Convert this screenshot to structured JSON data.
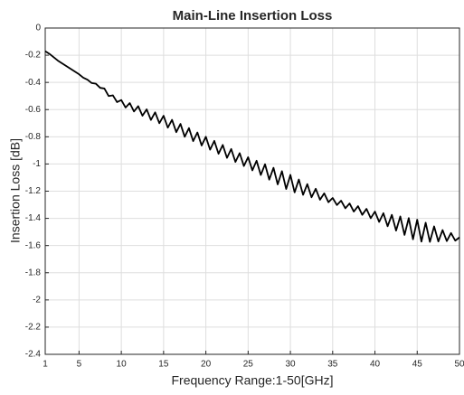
{
  "chart_data": {
    "type": "line",
    "title": "Main-Line Insertion Loss",
    "xlabel": "Frequency Range:1-50[GHz]",
    "ylabel": "Insertion Loss [dB]",
    "xlim": [
      1,
      50
    ],
    "ylim": [
      -2.4,
      0
    ],
    "xticks": [
      1,
      5,
      10,
      15,
      20,
      25,
      30,
      35,
      40,
      45,
      50
    ],
    "yticks": [
      -2.4,
      -2.2,
      -2,
      -1.8,
      -1.6,
      -1.4,
      -1.2,
      -1,
      -0.8,
      -0.6,
      -0.4,
      -0.2,
      0
    ],
    "grid": true,
    "x": [
      1,
      1.5,
      2,
      2.5,
      3,
      3.5,
      4,
      4.5,
      5,
      5.5,
      6,
      6.5,
      7,
      7.5,
      8,
      8.5,
      9,
      9.5,
      10,
      10.5,
      11,
      11.5,
      12,
      12.5,
      13,
      13.5,
      14,
      14.5,
      15,
      15.5,
      16,
      16.5,
      17,
      17.5,
      18,
      18.5,
      19,
      19.5,
      20,
      20.5,
      21,
      21.5,
      22,
      22.5,
      23,
      23.5,
      24,
      24.5,
      25,
      25.5,
      26,
      26.5,
      27,
      27.5,
      28,
      28.5,
      29,
      29.5,
      30,
      30.5,
      31,
      31.5,
      32,
      32.5,
      33,
      33.5,
      34,
      34.5,
      35,
      35.5,
      36,
      36.5,
      37,
      37.5,
      38,
      38.5,
      39,
      39.5,
      40,
      40.5,
      41,
      41.5,
      42,
      42.5,
      43,
      43.5,
      44,
      44.5,
      45,
      45.5,
      46,
      46.5,
      47,
      47.5,
      48,
      48.5,
      49,
      49.5,
      50
    ],
    "series": [
      {
        "name": "Insertion Loss",
        "color": "#000000",
        "values": [
          -0.17,
          -0.19,
          -0.215,
          -0.24,
          -0.26,
          -0.28,
          -0.3,
          -0.32,
          -0.34,
          -0.365,
          -0.38,
          -0.405,
          -0.41,
          -0.44,
          -0.445,
          -0.5,
          -0.495,
          -0.545,
          -0.53,
          -0.585,
          -0.552,
          -0.614,
          -0.575,
          -0.645,
          -0.598,
          -0.676,
          -0.62,
          -0.7,
          -0.645,
          -0.733,
          -0.675,
          -0.766,
          -0.705,
          -0.8,
          -0.736,
          -0.832,
          -0.768,
          -0.864,
          -0.8,
          -0.895,
          -0.83,
          -0.925,
          -0.86,
          -0.955,
          -0.89,
          -0.985,
          -0.92,
          -1.015,
          -0.95,
          -1.047,
          -0.976,
          -1.081,
          -1.002,
          -1.115,
          -1.028,
          -1.15,
          -1.053,
          -1.184,
          -1.08,
          -1.209,
          -1.114,
          -1.227,
          -1.148,
          -1.245,
          -1.182,
          -1.263,
          -1.216,
          -1.281,
          -1.25,
          -1.302,
          -1.27,
          -1.326,
          -1.29,
          -1.35,
          -1.31,
          -1.374,
          -1.33,
          -1.399,
          -1.35,
          -1.426,
          -1.362,
          -1.458,
          -1.374,
          -1.49,
          -1.386,
          -1.522,
          -1.398,
          -1.554,
          -1.41,
          -1.571,
          -1.432,
          -1.573,
          -1.459,
          -1.57,
          -1.486,
          -1.567,
          -1.508,
          -1.564,
          -1.54
        ]
      }
    ]
  }
}
